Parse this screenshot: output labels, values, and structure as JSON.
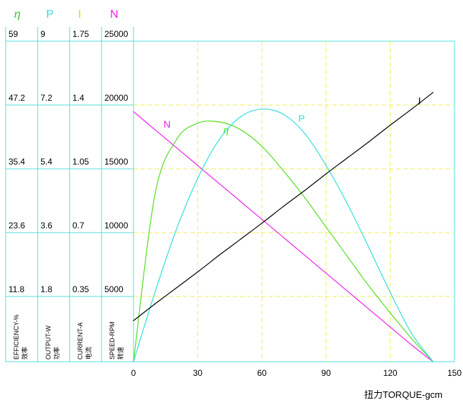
{
  "chart_data": {
    "type": "line",
    "x": [
      0,
      10,
      20,
      30,
      40,
      50,
      60,
      70,
      80,
      90,
      100,
      110,
      120,
      130,
      140
    ],
    "xlabel": "扭力TORQUE-gcm",
    "xlim": [
      0,
      150
    ],
    "xticks": [
      "0",
      "30",
      "60",
      "90",
      "120",
      "150"
    ],
    "grid": true,
    "columns": [
      {
        "symbol": "η",
        "ticks": [
          "59",
          "47.2",
          "35.4",
          "23.6",
          "11.8"
        ],
        "label_en": "EFFICIENCY-%",
        "label_cn": "效率",
        "color": "#33cc33"
      },
      {
        "symbol": "P",
        "ticks": [
          "9",
          "7.2",
          "5.4",
          "3.6",
          "1.8"
        ],
        "label_en": "OUTPUT-W",
        "label_cn": "功率",
        "color": "#33dddd"
      },
      {
        "symbol": "I",
        "ticks": [
          "1.75",
          "1.4",
          "1.05",
          "0.7",
          "0.35"
        ],
        "label_en": "CURRENT-A",
        "label_cn": "电流",
        "color": "#dddd00"
      },
      {
        "symbol": "N",
        "ticks": [
          "25000",
          "20000",
          "15000",
          "10000",
          "5000"
        ],
        "label_en": "SPEED-RPM",
        "label_cn": "转速",
        "color": "#ee22ee"
      }
    ],
    "ylim": [
      0,
      25000
    ],
    "series": [
      {
        "name": "N",
        "label": "N",
        "color": "#ee22ee",
        "label_at": 12,
        "values": [
          19500,
          18100,
          16700,
          15300,
          13900,
          12500,
          11100,
          9700,
          8300,
          6900,
          5500,
          4100,
          2700,
          1300,
          0
        ]
      },
      {
        "name": "η",
        "label": "η",
        "color": "#55dd22",
        "label_at": 42,
        "values": [
          0,
          13000,
          17300,
          18600,
          18700,
          18100,
          16800,
          14900,
          12800,
          10500,
          8200,
          5900,
          3800,
          1800,
          0
        ]
      },
      {
        "name": "P",
        "label": "P",
        "color": "#33dddd",
        "label_at": 77,
        "values": [
          0,
          5400,
          10300,
          14300,
          17300,
          19100,
          19700,
          19300,
          17800,
          15300,
          12300,
          8900,
          5400,
          2200,
          0
        ]
      },
      {
        "name": "I",
        "label": "I",
        "color": "#000000",
        "label_at": 133,
        "values": [
          3200,
          4500,
          5750,
          7000,
          8300,
          9550,
          10800,
          12100,
          13350,
          14650,
          15900,
          17150,
          18450,
          19700,
          21000
        ]
      }
    ]
  }
}
